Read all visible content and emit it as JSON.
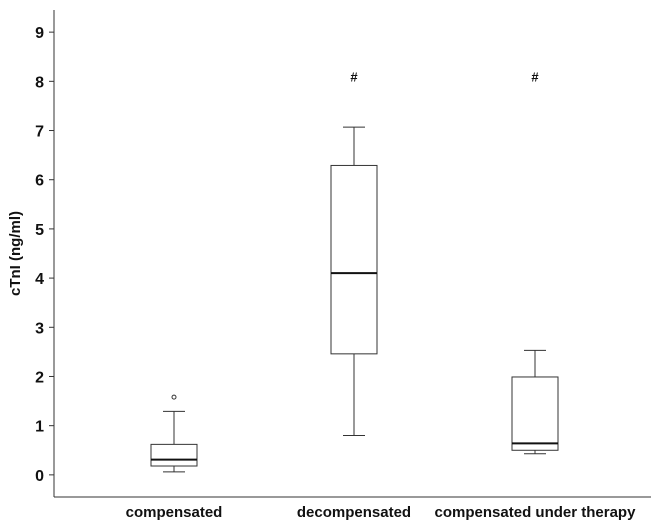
{
  "chart_data": {
    "type": "box",
    "title": "",
    "xlabel": "",
    "ylabel": "cTnI (ng/ml)",
    "ylim": [
      -0.45,
      9.45
    ],
    "yticks": [
      0,
      1,
      2,
      3,
      4,
      5,
      6,
      7,
      8,
      9
    ],
    "categories": [
      "compensated",
      "decompensated",
      "compensated under therapy"
    ],
    "boxes": [
      {
        "category": "compensated",
        "min": 0.06,
        "q1": 0.18,
        "median": 0.31,
        "q3": 0.62,
        "max": 1.29,
        "outliers": [
          1.58
        ],
        "annotation": ""
      },
      {
        "category": "decompensated",
        "min": 0.8,
        "q1": 2.46,
        "median": 4.1,
        "q3": 6.29,
        "max": 7.07,
        "outliers": [],
        "annotation": "#"
      },
      {
        "category": "compensated under therapy",
        "min": 0.43,
        "q1": 0.5,
        "median": 0.64,
        "q3": 1.99,
        "max": 2.53,
        "outliers": [],
        "annotation": "#"
      }
    ],
    "grid": false,
    "legend": "none"
  }
}
